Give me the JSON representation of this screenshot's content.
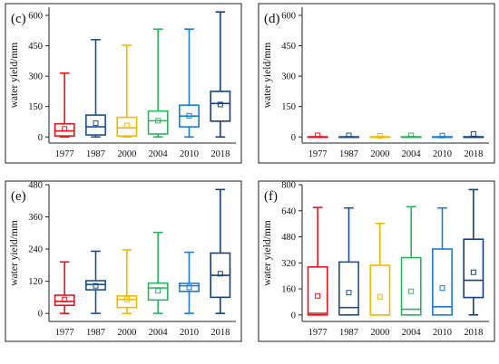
{
  "chart_data": [
    {
      "type": "boxplot",
      "panel_label": "(c)",
      "ylabel": "water yield/mm",
      "ylim": [
        -30,
        640
      ],
      "yticks": [
        0,
        150,
        300,
        450,
        600
      ],
      "categories": [
        "1977",
        "1987",
        "2000",
        "2004",
        "2010",
        "2018"
      ],
      "boxes": [
        {
          "min": 0,
          "q1": 5,
          "median": 30,
          "q3": 65,
          "max": 315,
          "mean": 40,
          "color": "#e8131b"
        },
        {
          "min": 0,
          "q1": 10,
          "median": 50,
          "q3": 108,
          "max": 480,
          "mean": 68,
          "color": "#1e4f91"
        },
        {
          "min": 0,
          "q1": 5,
          "median": 45,
          "q3": 97,
          "max": 452,
          "mean": 57,
          "color": "#f5b800"
        },
        {
          "min": 0,
          "q1": 15,
          "median": 80,
          "q3": 128,
          "max": 532,
          "mean": 80,
          "color": "#2bb45e"
        },
        {
          "min": 0,
          "q1": 50,
          "median": 103,
          "q3": 157,
          "max": 532,
          "mean": 105,
          "color": "#1a7bd6"
        },
        {
          "min": 0,
          "q1": 78,
          "median": 165,
          "q3": 225,
          "max": 617,
          "mean": 160,
          "color": "#13417d"
        }
      ]
    },
    {
      "type": "boxplot",
      "panel_label": "(d)",
      "ylabel": "water yield/mm",
      "ylim": [
        -30,
        640
      ],
      "yticks": [
        0,
        150,
        300,
        450,
        600
      ],
      "categories": [
        "1977",
        "1987",
        "2000",
        "2004",
        "2010",
        "2018"
      ],
      "boxes": [
        {
          "min": 0,
          "q1": 0,
          "median": 0,
          "q3": 1,
          "max": 1,
          "mean": 8,
          "color": "#e8131b"
        },
        {
          "min": 0,
          "q1": 0,
          "median": 0,
          "q3": 1,
          "max": 1,
          "mean": 8,
          "color": "#1e4f91"
        },
        {
          "min": 0,
          "q1": 0,
          "median": 0,
          "q3": 1,
          "max": 1,
          "mean": 6,
          "color": "#f5b800"
        },
        {
          "min": 0,
          "q1": 0,
          "median": 0,
          "q3": 1,
          "max": 1,
          "mean": 8,
          "color": "#2bb45e"
        },
        {
          "min": 0,
          "q1": 0,
          "median": 0,
          "q3": 1,
          "max": 1,
          "mean": 7,
          "color": "#1a7bd6"
        },
        {
          "min": 0,
          "q1": 0,
          "median": 0,
          "q3": 1,
          "max": 1,
          "mean": 15,
          "color": "#13417d"
        }
      ]
    },
    {
      "type": "boxplot",
      "panel_label": "(e)",
      "ylabel": "water yield/mm",
      "ylim": [
        -30,
        480
      ],
      "yticks": [
        0,
        120,
        240,
        360,
        480
      ],
      "categories": [
        "1977",
        "1987",
        "2000",
        "2004",
        "2010",
        "2018"
      ],
      "boxes": [
        {
          "min": 0,
          "q1": 30,
          "median": 45,
          "q3": 68,
          "max": 192,
          "mean": 52,
          "color": "#e8131b"
        },
        {
          "min": 0,
          "q1": 88,
          "median": 108,
          "q3": 122,
          "max": 232,
          "mean": 103,
          "color": "#1e4f91"
        },
        {
          "min": 0,
          "q1": 22,
          "median": 52,
          "q3": 65,
          "max": 237,
          "mean": 52,
          "color": "#f5b800"
        },
        {
          "min": 0,
          "q1": 50,
          "median": 95,
          "q3": 113,
          "max": 302,
          "mean": 84,
          "color": "#2bb45e"
        },
        {
          "min": 0,
          "q1": 82,
          "median": 103,
          "q3": 112,
          "max": 228,
          "mean": 97,
          "color": "#1a7bd6"
        },
        {
          "min": 0,
          "q1": 60,
          "median": 142,
          "q3": 225,
          "max": 462,
          "mean": 148,
          "color": "#13417d"
        }
      ]
    },
    {
      "type": "boxplot",
      "panel_label": "(f)",
      "ylabel": "water yield/mm",
      "ylim": [
        -40,
        800
      ],
      "yticks": [
        0,
        160,
        320,
        480,
        640,
        800
      ],
      "categories": [
        "1977",
        "1987",
        "2000",
        "2004",
        "2010",
        "2018"
      ],
      "boxes": [
        {
          "min": 0,
          "q1": 0,
          "median": 10,
          "q3": 295,
          "max": 660,
          "mean": 117,
          "color": "#e8131b"
        },
        {
          "min": 0,
          "q1": 0,
          "median": 45,
          "q3": 325,
          "max": 657,
          "mean": 137,
          "color": "#1e4f91"
        },
        {
          "min": 0,
          "q1": 0,
          "median": 0,
          "q3": 305,
          "max": 562,
          "mean": 112,
          "color": "#f5b800"
        },
        {
          "min": 0,
          "q1": 0,
          "median": 35,
          "q3": 352,
          "max": 665,
          "mean": 145,
          "color": "#2bb45e"
        },
        {
          "min": 0,
          "q1": 0,
          "median": 50,
          "q3": 405,
          "max": 657,
          "mean": 165,
          "color": "#1a7bd6"
        },
        {
          "min": 0,
          "q1": 107,
          "median": 213,
          "q3": 465,
          "max": 770,
          "mean": 262,
          "color": "#13417d"
        }
      ]
    }
  ]
}
